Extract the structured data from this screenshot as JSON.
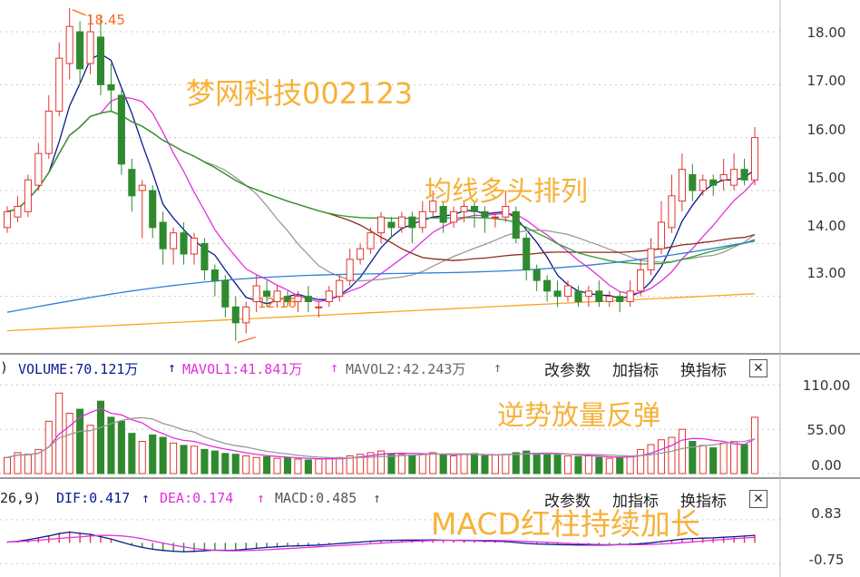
{
  "colors": {
    "up": "#e0352f",
    "down": "#2f8a2f",
    "ma5": "#0a1a8c",
    "ma10": "#e02fe0",
    "ma20": "#999999",
    "ma30": "#8b2c1c",
    "ma60": "#2f9a2f",
    "ma120": "#2f80d8",
    "ma250": "#f5a623",
    "annotation": "#f6b23a",
    "marker": "#ff6a1a"
  },
  "price_panel": {
    "annotation_title": "梦网科技002123",
    "annotation_ma": "均线多头排列",
    "high_marker": "18.45",
    "low_marker": "12.16",
    "y_ticks": [
      "18.00",
      "17.00",
      "16.00",
      "15.00",
      "14.00",
      "13.00"
    ]
  },
  "volume_panel": {
    "header": {
      "prefix": ")",
      "volume": "VOLUME:70.121万",
      "mavol1": "MAVOL1:41.841万",
      "mavol2": "MAVOL2:42.243万"
    },
    "buttons": {
      "change_params": "改参数",
      "add_indicator": "加指标",
      "switch_indicator": "换指标",
      "close": "✕"
    },
    "annotation": "逆势放量反弹",
    "y_ticks": [
      "110.00",
      "55.00",
      "0.00"
    ]
  },
  "macd_panel": {
    "header": {
      "prefix": "26,9)",
      "dif": "DIF:0.417",
      "dea": "DEA:0.174",
      "macd": "MACD:0.485"
    },
    "buttons": {
      "change_params": "改参数",
      "add_indicator": "加指标",
      "switch_indicator": "换指标",
      "close": "✕"
    },
    "annotation": "MACD红柱持续加长",
    "y_ticks": [
      "0.83",
      "-0.75"
    ]
  },
  "chart_data": {
    "type": "candlestick",
    "price_ylim": [
      12.0,
      18.6
    ],
    "volume_ylim": [
      0,
      115
    ],
    "macd_ylim": [
      -1.1,
      1.25
    ],
    "candles": [
      [
        14.3,
        14.6,
        14.2,
        14.7
      ],
      [
        14.5,
        14.7,
        14.4,
        14.9
      ],
      [
        14.6,
        15.2,
        14.5,
        15.3
      ],
      [
        15.1,
        15.7,
        15.0,
        15.9
      ],
      [
        15.7,
        16.5,
        15.6,
        16.8
      ],
      [
        16.5,
        17.5,
        16.4,
        17.8
      ],
      [
        17.4,
        18.1,
        17.1,
        18.45
      ],
      [
        18.0,
        17.3,
        17.0,
        18.2
      ],
      [
        17.4,
        18.0,
        17.2,
        18.3
      ],
      [
        17.9,
        17.0,
        16.8,
        18.3
      ],
      [
        17.0,
        16.9,
        16.5,
        17.4
      ],
      [
        16.8,
        15.5,
        15.3,
        16.9
      ],
      [
        15.4,
        14.9,
        14.6,
        15.6
      ],
      [
        15.0,
        15.1,
        14.1,
        15.2
      ],
      [
        15.0,
        14.3,
        14.1,
        15.1
      ],
      [
        14.4,
        13.9,
        13.6,
        14.6
      ],
      [
        13.9,
        14.2,
        13.6,
        14.3
      ],
      [
        14.2,
        13.8,
        13.6,
        14.4
      ],
      [
        13.8,
        14.1,
        13.6,
        14.2
      ],
      [
        14.0,
        13.5,
        13.3,
        14.1
      ],
      [
        13.5,
        13.3,
        13.0,
        13.6
      ],
      [
        13.3,
        12.8,
        12.6,
        13.4
      ],
      [
        12.8,
        12.5,
        12.16,
        13.0
      ],
      [
        12.5,
        12.8,
        12.3,
        12.9
      ],
      [
        12.9,
        13.2,
        12.7,
        13.4
      ],
      [
        13.1,
        13.0,
        12.8,
        13.3
      ],
      [
        12.9,
        13.1,
        12.8,
        13.2
      ],
      [
        13.0,
        12.9,
        12.8,
        13.1
      ],
      [
        12.9,
        13.0,
        12.7,
        13.1
      ],
      [
        13.0,
        12.9,
        12.7,
        13.2
      ],
      [
        12.8,
        12.8,
        12.6,
        12.9
      ],
      [
        12.9,
        13.1,
        12.8,
        13.2
      ],
      [
        13.0,
        13.3,
        12.9,
        13.4
      ],
      [
        13.3,
        13.7,
        13.2,
        13.9
      ],
      [
        13.7,
        13.9,
        13.6,
        14.0
      ],
      [
        13.9,
        14.2,
        13.8,
        14.3
      ],
      [
        14.2,
        14.5,
        14.0,
        14.6
      ],
      [
        14.4,
        14.3,
        14.1,
        14.5
      ],
      [
        14.3,
        14.5,
        14.2,
        14.6
      ],
      [
        14.5,
        14.3,
        14.0,
        14.6
      ],
      [
        14.3,
        14.6,
        14.2,
        14.8
      ],
      [
        14.6,
        14.8,
        14.5,
        15.0
      ],
      [
        14.7,
        14.4,
        14.2,
        14.8
      ],
      [
        14.4,
        14.6,
        14.3,
        14.7
      ],
      [
        14.6,
        14.7,
        14.4,
        14.8
      ],
      [
        14.7,
        14.6,
        14.3,
        14.8
      ],
      [
        14.6,
        14.5,
        14.2,
        14.7
      ],
      [
        14.5,
        14.5,
        14.3,
        14.6
      ],
      [
        14.5,
        14.7,
        14.4,
        15.0
      ],
      [
        14.6,
        14.1,
        14.0,
        14.7
      ],
      [
        14.1,
        13.5,
        13.3,
        14.2
      ],
      [
        13.5,
        13.3,
        13.1,
        13.6
      ],
      [
        13.3,
        13.1,
        12.9,
        13.4
      ],
      [
        13.1,
        13.0,
        12.8,
        13.3
      ],
      [
        13.0,
        13.2,
        12.9,
        13.3
      ],
      [
        13.1,
        12.9,
        12.8,
        13.2
      ],
      [
        13.0,
        13.1,
        12.8,
        13.2
      ],
      [
        13.1,
        12.9,
        12.8,
        13.3
      ],
      [
        12.9,
        13.0,
        12.8,
        13.1
      ],
      [
        13.0,
        12.9,
        12.7,
        13.1
      ],
      [
        12.9,
        13.1,
        12.8,
        13.3
      ],
      [
        13.1,
        13.5,
        13.0,
        13.7
      ],
      [
        13.5,
        13.9,
        13.4,
        14.1
      ],
      [
        13.9,
        14.4,
        13.8,
        14.8
      ],
      [
        14.3,
        14.9,
        14.2,
        15.3
      ],
      [
        14.8,
        15.4,
        14.6,
        15.7
      ],
      [
        15.3,
        15.0,
        14.8,
        15.5
      ],
      [
        15.0,
        15.2,
        14.9,
        15.3
      ],
      [
        15.2,
        15.1,
        14.9,
        15.3
      ],
      [
        15.2,
        15.3,
        15.0,
        15.6
      ],
      [
        15.1,
        15.4,
        15.0,
        15.7
      ],
      [
        15.4,
        15.2,
        15.1,
        15.6
      ],
      [
        15.2,
        16.0,
        15.1,
        16.2
      ]
    ],
    "volume": [
      20,
      26,
      24,
      30,
      65,
      100,
      75,
      80,
      60,
      90,
      70,
      65,
      50,
      40,
      48,
      45,
      38,
      35,
      34,
      30,
      28,
      25,
      24,
      22,
      20,
      21,
      19,
      20,
      18,
      17,
      18,
      19,
      20,
      22,
      24,
      26,
      28,
      25,
      24,
      23,
      24,
      26,
      23,
      22,
      24,
      25,
      22,
      23,
      24,
      26,
      28,
      25,
      24,
      23,
      22,
      21,
      22,
      20,
      19,
      20,
      22,
      30,
      36,
      42,
      45,
      55,
      40,
      35,
      32,
      38,
      40,
      36,
      70
    ],
    "macd": [
      0.05,
      0.1,
      0.2,
      0.32,
      0.45,
      0.6,
      0.7,
      0.62,
      0.55,
      0.4,
      0.25,
      0.05,
      -0.15,
      -0.3,
      -0.42,
      -0.5,
      -0.55,
      -0.58,
      -0.56,
      -0.52,
      -0.48,
      -0.5,
      -0.48,
      -0.42,
      -0.36,
      -0.3,
      -0.26,
      -0.22,
      -0.2,
      -0.18,
      -0.15,
      -0.1,
      -0.05,
      0.0,
      0.05,
      0.1,
      0.14,
      0.16,
      0.17,
      0.18,
      0.18,
      0.19,
      0.17,
      0.16,
      0.15,
      0.14,
      0.12,
      0.1,
      0.08,
      0.02,
      -0.04,
      -0.08,
      -0.1,
      -0.12,
      -0.13,
      -0.14,
      -0.14,
      -0.15,
      -0.14,
      -0.12,
      -0.1,
      -0.06,
      0.0,
      0.08,
      0.16,
      0.24,
      0.28,
      0.3,
      0.32,
      0.36,
      0.4,
      0.44,
      0.485
    ]
  }
}
